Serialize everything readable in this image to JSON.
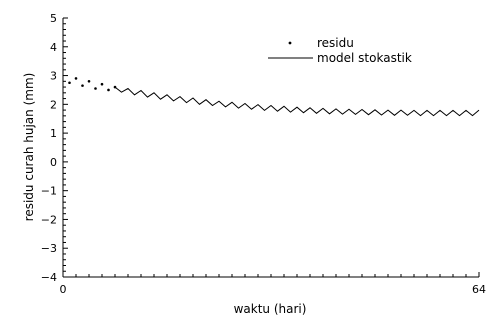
{
  "chart_data": {
    "type": "line",
    "xlabel": "waktu (hari)",
    "ylabel": "residu curah hujan (mm)",
    "xlim": [
      0,
      64
    ],
    "ylim": [
      -4,
      5
    ],
    "x_ticks": [
      0,
      64
    ],
    "y_ticks": [
      -4,
      -3,
      -2,
      -1,
      0,
      1,
      2,
      3,
      4,
      5
    ],
    "grid": false,
    "legend_position": "top-right",
    "series": [
      {
        "name": "residu",
        "style": "points",
        "x": [
          1,
          2,
          3,
          4,
          5,
          6,
          7,
          8
        ],
        "y": [
          2.75,
          2.9,
          2.65,
          2.8,
          2.55,
          2.7,
          2.5,
          2.6
        ]
      },
      {
        "name": "model stokastik",
        "style": "line",
        "x": [
          8,
          9,
          10,
          11,
          12,
          13,
          14,
          15,
          16,
          17,
          18,
          19,
          20,
          21,
          22,
          23,
          24,
          25,
          26,
          27,
          28,
          29,
          30,
          31,
          32,
          33,
          34,
          35,
          36,
          37,
          38,
          39,
          40,
          41,
          42,
          43,
          44,
          45,
          46,
          47,
          48,
          49,
          50,
          51,
          52,
          53,
          54,
          55,
          56,
          57,
          58,
          59,
          60,
          61,
          62,
          63,
          64
        ],
        "y": [
          2.6,
          2.42,
          2.55,
          2.33,
          2.48,
          2.25,
          2.4,
          2.18,
          2.33,
          2.12,
          2.27,
          2.06,
          2.22,
          2.0,
          2.16,
          1.96,
          2.11,
          1.91,
          2.07,
          1.87,
          2.03,
          1.83,
          1.99,
          1.79,
          1.96,
          1.76,
          1.93,
          1.73,
          1.9,
          1.71,
          1.88,
          1.69,
          1.86,
          1.67,
          1.84,
          1.66,
          1.83,
          1.65,
          1.82,
          1.64,
          1.81,
          1.63,
          1.8,
          1.62,
          1.8,
          1.62,
          1.79,
          1.61,
          1.79,
          1.61,
          1.79,
          1.61,
          1.79,
          1.61,
          1.79,
          1.61,
          1.8
        ]
      }
    ]
  }
}
